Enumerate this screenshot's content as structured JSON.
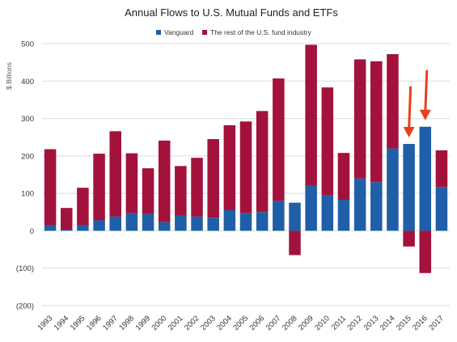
{
  "chart_data": {
    "type": "bar",
    "stacked": true,
    "title": "Annual Flows to U.S. Mutual Funds and ETFs",
    "ylabel": "$ Billions",
    "xlabel": "",
    "ylim": [
      -200,
      500
    ],
    "yticks": [
      -200,
      -100,
      0,
      100,
      200,
      300,
      400,
      500
    ],
    "ytick_labels": [
      "(200)",
      "(100)",
      "0",
      "100",
      "200",
      "300",
      "400",
      "500"
    ],
    "grid": true,
    "legend_position": "top",
    "categories": [
      "1993",
      "1994",
      "1995",
      "1996",
      "1997",
      "1998",
      "1999",
      "2000",
      "2001",
      "2002",
      "2003",
      "2004",
      "2005",
      "2006",
      "2007",
      "2008",
      "2009",
      "2010",
      "2011",
      "2012",
      "2013",
      "2014",
      "2015",
      "2016",
      "2017"
    ],
    "series": [
      {
        "name": "Vanguard",
        "color": "#1f5fa8",
        "values": [
          15,
          3,
          15,
          28,
          38,
          47,
          45,
          23,
          40,
          38,
          35,
          55,
          47,
          50,
          80,
          75,
          120,
          95,
          83,
          140,
          130,
          220,
          232,
          278,
          117
        ]
      },
      {
        "name": "The rest of the U.S. fund industry",
        "color": "#a3123a",
        "values": [
          203,
          58,
          100,
          178,
          228,
          160,
          122,
          218,
          133,
          157,
          210,
          227,
          245,
          270,
          327,
          -65,
          377,
          288,
          125,
          318,
          323,
          252,
          -42,
          -113,
          98
        ]
      }
    ],
    "annotations": [
      {
        "type": "arrow",
        "category": "2015",
        "color": "#e8401c"
      },
      {
        "type": "arrow",
        "category": "2016",
        "color": "#e8401c"
      }
    ]
  }
}
